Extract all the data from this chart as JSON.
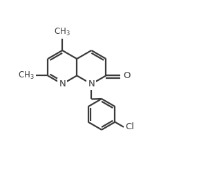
{
  "bg": "#ffffff",
  "lc": "#3a3a3a",
  "lw": 1.6,
  "dbo": 0.07,
  "shrink": 0.08,
  "fs": 9.5,
  "xlim": [
    0,
    5.5
  ],
  "ylim": [
    -1.0,
    4.2
  ],
  "BL": 0.52
}
